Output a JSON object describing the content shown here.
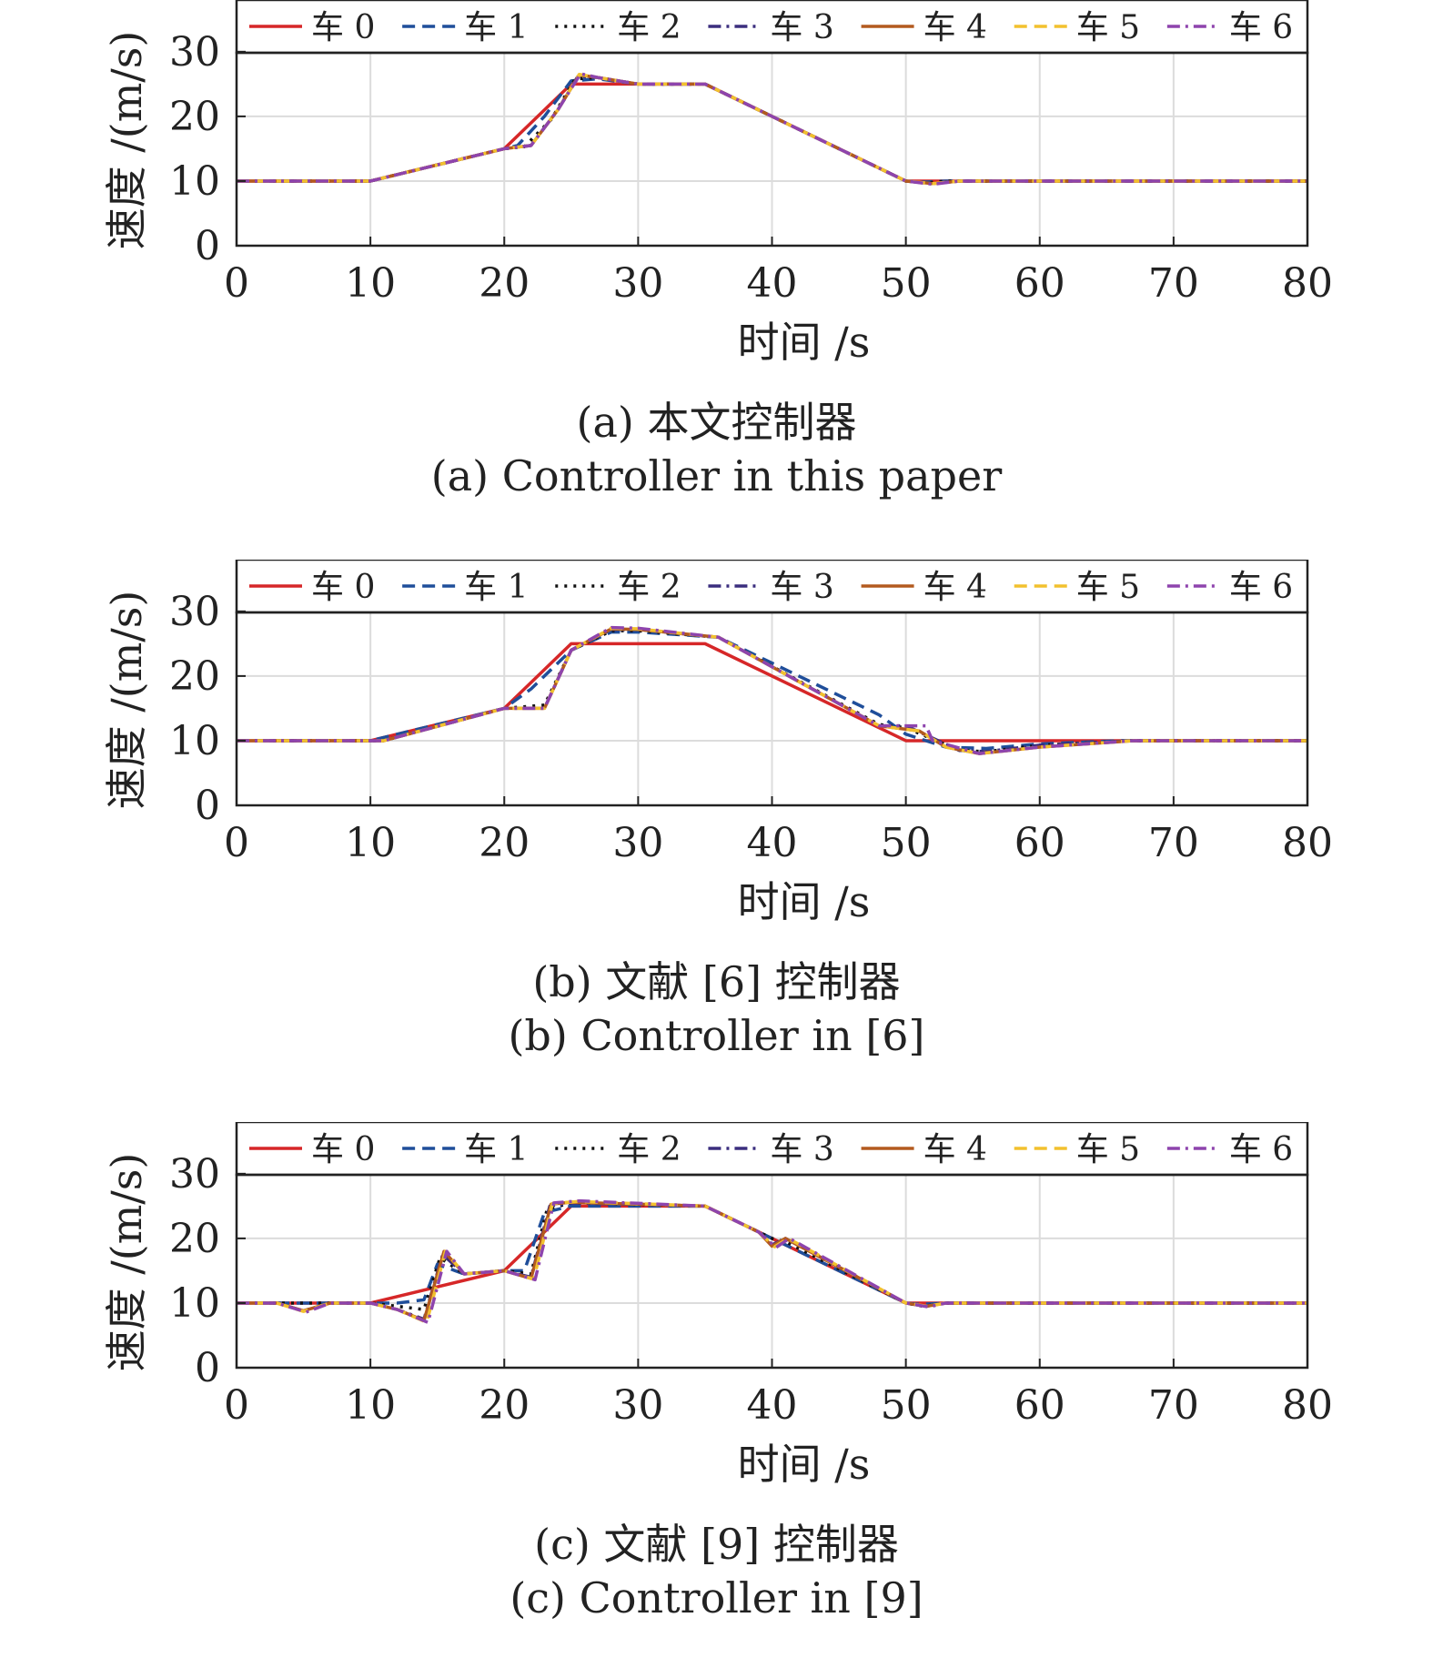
{
  "chart_data": [
    {
      "type": "line",
      "caption_cn": "(a) 本文控制器",
      "caption_en": "(a) Controller in this paper",
      "xlabel": "时间 /s",
      "ylabel": "速度 /(m/s)",
      "xlim": [
        0,
        80
      ],
      "ylim": [
        0,
        38
      ],
      "xticks": [
        0,
        10,
        20,
        30,
        40,
        50,
        60,
        70,
        80
      ],
      "yticks": [
        0,
        10,
        20,
        30
      ],
      "grid": true,
      "legend_position": "top",
      "series": [
        {
          "name": "车 0",
          "color": "#d62728",
          "dash": "solid",
          "x": [
            0,
            10,
            20,
            25,
            35,
            50,
            80
          ],
          "y": [
            10,
            10,
            15,
            25,
            25,
            10,
            10
          ]
        },
        {
          "name": "车 1",
          "color": "#1f4e9a",
          "dash": "dashed",
          "x": [
            0,
            10,
            20,
            21,
            23,
            25,
            27,
            30,
            35,
            50,
            51,
            53,
            80
          ],
          "y": [
            10,
            10,
            15,
            15.5,
            20,
            25.5,
            25.8,
            25,
            25,
            10,
            9.8,
            10,
            10
          ]
        },
        {
          "name": "车 2",
          "color": "#111111",
          "dash": "dotted",
          "x": [
            0,
            10,
            20,
            21.5,
            23.5,
            25.3,
            27,
            30,
            35,
            50,
            51.5,
            53,
            80
          ],
          "y": [
            10,
            10,
            15,
            15.3,
            19.5,
            25.8,
            26,
            25,
            25,
            10,
            9.7,
            10,
            10
          ]
        },
        {
          "name": "车 3",
          "color": "#3b2e7e",
          "dash": "dashdot",
          "x": [
            0,
            10,
            20,
            22,
            24,
            25.5,
            27,
            30,
            35,
            50,
            52,
            54,
            80
          ],
          "y": [
            10,
            10,
            15,
            15.5,
            21,
            26.2,
            26,
            25,
            25,
            10,
            9.6,
            10,
            10
          ]
        },
        {
          "name": "车 4",
          "color": "#b35a1f",
          "dash": "solid",
          "x": [
            0,
            10,
            20,
            22,
            24,
            25.6,
            27,
            30,
            35,
            50,
            52,
            54,
            80
          ],
          "y": [
            10,
            10,
            15,
            15.5,
            21,
            26.4,
            26,
            25,
            25,
            10,
            9.6,
            10,
            10
          ]
        },
        {
          "name": "车 5",
          "color": "#f2c12e",
          "dash": "dashed",
          "x": [
            0,
            10,
            20,
            22,
            24,
            25.6,
            27,
            30,
            35,
            50,
            52,
            54,
            80
          ],
          "y": [
            10,
            10,
            15,
            15.5,
            21,
            26.5,
            26,
            25,
            25,
            10,
            9.6,
            10,
            10
          ]
        },
        {
          "name": "车 6",
          "color": "#8e44ad",
          "dash": "dashdot",
          "x": [
            0,
            10,
            20,
            22,
            24,
            25.7,
            27,
            30,
            35,
            50,
            52,
            54,
            80
          ],
          "y": [
            10,
            10,
            15,
            15.5,
            21,
            26.6,
            26,
            25,
            25,
            10,
            9.5,
            10,
            10
          ]
        }
      ]
    },
    {
      "type": "line",
      "caption_cn": "(b) 文献 [6] 控制器",
      "caption_en": "(b) Controller in [6]",
      "xlabel": "时间 /s",
      "ylabel": "速度 /(m/s)",
      "xlim": [
        0,
        80
      ],
      "ylim": [
        0,
        38
      ],
      "xticks": [
        0,
        10,
        20,
        30,
        40,
        50,
        60,
        70,
        80
      ],
      "yticks": [
        0,
        10,
        20,
        30
      ],
      "grid": true,
      "legend_position": "top",
      "series": [
        {
          "name": "车 0",
          "color": "#d62728",
          "dash": "solid",
          "x": [
            0,
            10,
            20,
            25,
            35,
            50,
            52,
            80
          ],
          "y": [
            10,
            10,
            15,
            25,
            25,
            10,
            10,
            10
          ]
        },
        {
          "name": "车 1",
          "color": "#1f4e9a",
          "dash": "dashed",
          "x": [
            0,
            10,
            20,
            22,
            25,
            28,
            30,
            36,
            48,
            50,
            53,
            56,
            60,
            66,
            80
          ],
          "y": [
            10,
            10,
            15,
            18,
            24,
            26.8,
            26.8,
            26,
            14,
            11,
            9,
            8.8,
            9.5,
            10,
            10
          ]
        },
        {
          "name": "车 2",
          "color": "#111111",
          "dash": "dotted",
          "x": [
            0,
            11,
            20,
            23,
            25,
            28,
            30,
            36,
            48,
            50,
            54,
            56,
            60,
            67,
            80
          ],
          "y": [
            10,
            10,
            15,
            15.5,
            24,
            27,
            27,
            26,
            12.5,
            12,
            8.5,
            8.3,
            9.3,
            10,
            10
          ]
        },
        {
          "name": "车 3",
          "color": "#3b2e7e",
          "dash": "dashdot",
          "x": [
            0,
            11,
            20,
            23,
            25,
            28,
            30,
            36,
            48,
            50,
            54,
            56,
            60,
            67,
            80
          ],
          "y": [
            10,
            10,
            15,
            15,
            24,
            27.2,
            27.2,
            26,
            12.3,
            12.3,
            8.5,
            8.3,
            9.3,
            10,
            10
          ]
        },
        {
          "name": "车 4",
          "color": "#b35a1f",
          "dash": "solid",
          "x": [
            0,
            11,
            20,
            23,
            25,
            28,
            30,
            36,
            48,
            51,
            53,
            55.5,
            60,
            67,
            80
          ],
          "y": [
            10,
            10,
            15,
            15,
            24,
            27.3,
            27.2,
            26,
            12.3,
            11.5,
            9,
            8,
            9,
            10,
            10
          ]
        },
        {
          "name": "车 5",
          "color": "#f2c12e",
          "dash": "dashed",
          "x": [
            0,
            11,
            20,
            23,
            25,
            28,
            30,
            36,
            48,
            51,
            53,
            55.5,
            60,
            67,
            80
          ],
          "y": [
            10,
            10,
            15,
            15,
            24,
            27.4,
            27.3,
            26,
            12.3,
            11.5,
            9,
            8,
            9,
            10,
            10
          ]
        },
        {
          "name": "车 6",
          "color": "#8e44ad",
          "dash": "dashdot",
          "x": [
            0,
            11,
            20,
            23,
            25,
            28,
            30,
            36,
            48,
            51.5,
            52,
            55.5,
            60,
            67,
            80
          ],
          "y": [
            10,
            10,
            15,
            15,
            24,
            27.5,
            27.4,
            26,
            12.3,
            12.3,
            10,
            8,
            9,
            10,
            10
          ]
        }
      ]
    },
    {
      "type": "line",
      "caption_cn": "(c) 文献 [9] 控制器",
      "caption_en": "(c) Controller in [9]",
      "xlabel": "时间 /s",
      "ylabel": "速度 /(m/s)",
      "xlim": [
        0,
        80
      ],
      "ylim": [
        0,
        38
      ],
      "xticks": [
        0,
        10,
        20,
        30,
        40,
        50,
        60,
        70,
        80
      ],
      "yticks": [
        0,
        10,
        20,
        30
      ],
      "grid": true,
      "legend_position": "top",
      "series": [
        {
          "name": "车 0",
          "color": "#d62728",
          "dash": "solid",
          "x": [
            0,
            10,
            20,
            25,
            35,
            50,
            80
          ],
          "y": [
            10,
            10,
            15,
            25,
            25,
            10,
            10
          ]
        },
        {
          "name": "车 1",
          "color": "#1f4e9a",
          "dash": "dashed",
          "x": [
            0,
            10,
            12,
            14,
            15,
            17,
            20,
            21.5,
            23,
            25,
            35,
            40,
            50,
            51,
            53,
            80
          ],
          "y": [
            10,
            10,
            10,
            10.5,
            16,
            14.5,
            15,
            15,
            24,
            25,
            25,
            20,
            10,
            9.8,
            10,
            10
          ]
        },
        {
          "name": "车 2",
          "color": "#111111",
          "dash": "dotted",
          "x": [
            0,
            10,
            12,
            14,
            15.2,
            17,
            20,
            22,
            23.2,
            25,
            35,
            40,
            41,
            50,
            51.3,
            53,
            80
          ],
          "y": [
            10,
            10,
            9.5,
            9,
            17,
            14.5,
            15,
            14.5,
            24.5,
            25.5,
            25,
            20,
            19.5,
            10,
            9.5,
            10,
            10
          ]
        },
        {
          "name": "车 3",
          "color": "#3b2e7e",
          "dash": "dashdot",
          "x": [
            0,
            3,
            5,
            7,
            10,
            12,
            14,
            15.4,
            17,
            20,
            22,
            23.4,
            25,
            35,
            39,
            40,
            41,
            50,
            51.5,
            53,
            80
          ],
          "y": [
            10,
            10,
            8.8,
            10,
            10,
            9,
            7.5,
            17.5,
            14.5,
            15,
            14,
            25,
            25.5,
            25,
            21,
            19,
            20,
            10,
            9.5,
            10,
            10
          ]
        },
        {
          "name": "车 4",
          "color": "#b35a1f",
          "dash": "solid",
          "x": [
            0,
            3,
            5,
            7,
            10,
            12,
            14,
            15.5,
            17,
            20,
            22,
            23.5,
            25,
            35,
            39,
            40,
            41,
            50,
            51.5,
            53,
            80
          ],
          "y": [
            10,
            10,
            8.8,
            10,
            10,
            9,
            7.3,
            18,
            14.5,
            15,
            13.8,
            25.3,
            25.6,
            25,
            21,
            18.8,
            20,
            10,
            9.5,
            10,
            10
          ]
        },
        {
          "name": "车 5",
          "color": "#f2c12e",
          "dash": "dashed",
          "x": [
            0,
            3,
            5,
            7,
            10,
            12,
            14.2,
            15.6,
            17,
            20,
            22.2,
            23.6,
            25.5,
            35,
            39,
            40.2,
            41.2,
            50,
            51.6,
            53,
            80
          ],
          "y": [
            10,
            10,
            8.7,
            10,
            10,
            9,
            7,
            18,
            14.5,
            15,
            13.7,
            25.4,
            25.7,
            25,
            21,
            18.7,
            20,
            10,
            9.5,
            10,
            10
          ]
        },
        {
          "name": "车 6",
          "color": "#8e44ad",
          "dash": "dashdot",
          "x": [
            0,
            3,
            5.2,
            7,
            10,
            12,
            14.3,
            15.7,
            17,
            20,
            22.3,
            23.7,
            25.6,
            35,
            39,
            40.3,
            41.3,
            50,
            51.7,
            53,
            80
          ],
          "y": [
            10,
            10,
            8.6,
            10,
            10,
            9,
            7,
            18,
            14.5,
            15,
            13.6,
            25.5,
            25.8,
            25,
            21,
            18.6,
            20,
            10,
            9.4,
            10,
            10
          ]
        }
      ]
    }
  ]
}
